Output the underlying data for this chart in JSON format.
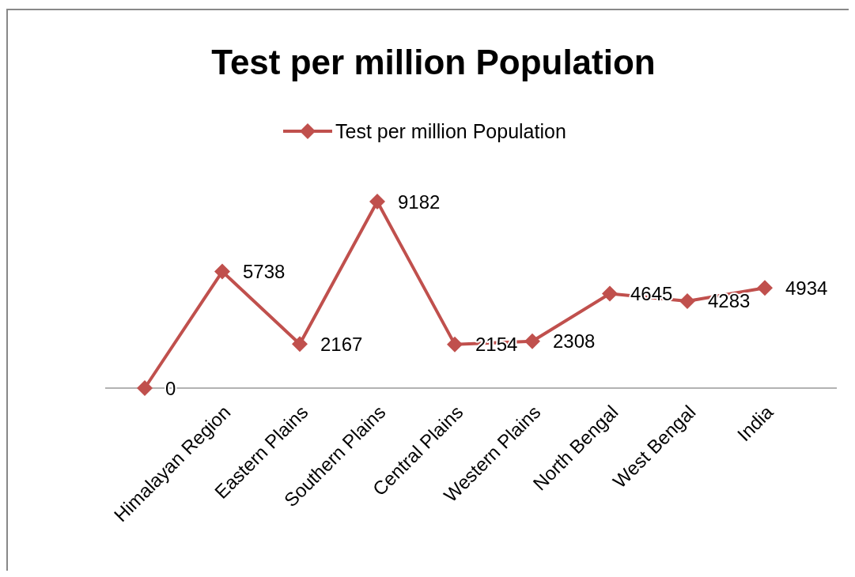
{
  "chart_data": {
    "type": "line",
    "title": "Test per million Population",
    "categories": [
      null,
      "Himalayan Region",
      "Eastern Plains",
      "Southern Plains",
      "Central Plains",
      "Western Plains",
      "North Bengal",
      "West Bengal",
      "India"
    ],
    "series": [
      {
        "name": "Test per million Population",
        "color": "#c0504d",
        "values": [
          0,
          5738,
          2167,
          9182,
          2154,
          2308,
          4645,
          4283,
          4934
        ]
      }
    ],
    "data_labels": true,
    "legend": "top",
    "marker": "diamond",
    "line_style": "solid"
  }
}
